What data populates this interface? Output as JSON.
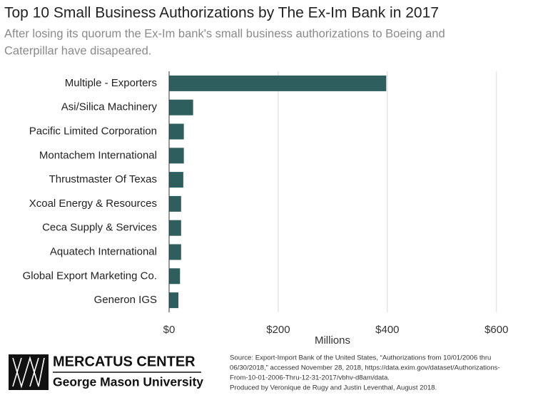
{
  "chart_data": {
    "type": "barh",
    "title": "Top 10 Small Business Authorizations by The Ex-Im Bank in 2017",
    "subtitle": [
      "After losing its quorum the Ex-Im bank's small business authorizations to Boeing and",
      "Caterpillar have disapeared."
    ],
    "categories": [
      "Multiple - Exporters",
      "Asi/Silica Machinery",
      "Pacific Limited Corporation",
      "Montachem International",
      "Thrustmaster Of Texas",
      "Xcoal Energy & Resources",
      "Ceca Supply & Services",
      "Aquatech International",
      "Global Export Marketing Co.",
      "Generon IGS"
    ],
    "values": [
      398,
      44,
      27,
      27,
      26,
      22,
      22,
      22,
      20,
      17
    ],
    "color": "#2f5e5f",
    "xlim": [
      0,
      650
    ],
    "xticks": [
      {
        "value": 0,
        "label": "$0"
      },
      {
        "value": 200,
        "label": "$200"
      },
      {
        "value": 400,
        "label": "$400"
      },
      {
        "value": 600,
        "label": "$600"
      }
    ],
    "x_label": "Millions",
    "grid": true,
    "brand": [
      "MERCATUS CENTER",
      "George Mason University"
    ],
    "source": [
      "Source: Export-Import Bank of the United States, “Authorizations from 10/01/2006 thru",
      "06/30/2018,” accessed November 28, 2018, https://data.exim.gov/dataset/Authorizations-",
      "From-10-01-2006-Thru-12-31-2017/vbhv-d8am/data.",
      "Produced by Veronique de Rugy and Justin Leventhal, August 2018."
    ]
  }
}
